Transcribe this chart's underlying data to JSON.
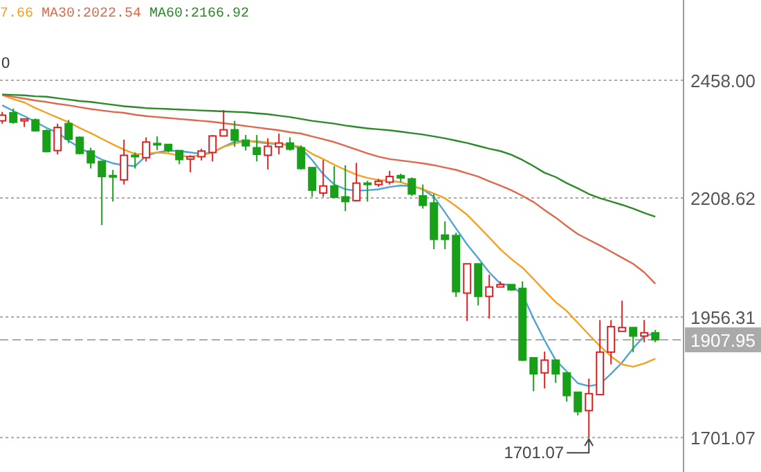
{
  "chart_data": {
    "type": "candlestick",
    "categories": [
      null,
      null,
      null,
      null,
      null,
      null,
      null,
      null,
      null,
      null,
      null,
      null,
      null,
      null,
      null,
      null,
      null,
      null,
      null,
      null,
      null,
      null,
      null,
      null,
      null,
      null,
      null,
      null,
      null,
      null,
      null,
      null,
      null,
      null,
      null,
      null,
      null,
      null,
      null,
      null,
      null,
      null,
      null,
      null,
      null,
      null,
      null,
      null,
      null,
      null,
      null,
      null,
      null,
      null,
      null,
      null,
      null,
      null,
      null,
      null
    ],
    "ohlc": [
      [
        2372,
        2391,
        2366,
        2384
      ],
      [
        2389,
        2398,
        2366,
        2369
      ],
      [
        2372,
        2376,
        2359,
        2376
      ],
      [
        2374,
        2377,
        2349,
        2351
      ],
      [
        2351,
        2354,
        2305,
        2307
      ],
      [
        2309,
        2366,
        2301,
        2358
      ],
      [
        2366,
        2374,
        2325,
        2333
      ],
      [
        2337,
        2339,
        2301,
        2303
      ],
      [
        2308,
        2315,
        2271,
        2283
      ],
      [
        2286,
        2286,
        2151,
        2254
      ],
      [
        2256,
        2268,
        2201,
        2254
      ],
      [
        2247,
        2332,
        2237,
        2299
      ],
      [
        2299,
        2305,
        2271,
        2296
      ],
      [
        2294,
        2337,
        2286,
        2327
      ],
      [
        2324,
        2339,
        2310,
        2322
      ],
      [
        2322,
        2322,
        2305,
        2309
      ],
      [
        2309,
        2309,
        2280,
        2290
      ],
      [
        2291,
        2299,
        2263,
        2296
      ],
      [
        2296,
        2313,
        2288,
        2308
      ],
      [
        2305,
        2342,
        2286,
        2340
      ],
      [
        2340,
        2395,
        2340,
        2353
      ],
      [
        2353,
        2372,
        2317,
        2331
      ],
      [
        2331,
        2342,
        2309,
        2319
      ],
      [
        2315,
        2342,
        2286,
        2301
      ],
      [
        2299,
        2335,
        2269,
        2318
      ],
      [
        2317,
        2345,
        2301,
        2325
      ],
      [
        2325,
        2337,
        2309,
        2312
      ],
      [
        2315,
        2320,
        2269,
        2271
      ],
      [
        2273,
        2273,
        2211,
        2225
      ],
      [
        2219,
        2289,
        2211,
        2234
      ],
      [
        2234,
        2276,
        2208,
        2210
      ],
      [
        2211,
        2278,
        2181,
        2201
      ],
      [
        2203,
        2283,
        2201,
        2240
      ],
      [
        2240,
        2245,
        2201,
        2238
      ],
      [
        2237,
        2249,
        2232,
        2244
      ],
      [
        2242,
        2266,
        2237,
        2254
      ],
      [
        2256,
        2260,
        2242,
        2251
      ],
      [
        2249,
        2252,
        2213,
        2217
      ],
      [
        2213,
        2237,
        2186,
        2193
      ],
      [
        2198,
        2217,
        2100,
        2121
      ],
      [
        2130,
        2159,
        2100,
        2121
      ],
      [
        2129,
        2135,
        1999,
        2010
      ],
      [
        2007,
        2069,
        1948,
        2069
      ],
      [
        2069,
        2069,
        1981,
        2000
      ],
      [
        2000,
        2046,
        1953,
        2020
      ],
      [
        2020,
        2032,
        2020,
        2025
      ],
      [
        2025,
        2025,
        2012,
        2014
      ],
      [
        2017,
        2032,
        1863,
        1865
      ],
      [
        1870,
        1870,
        1799,
        1836
      ],
      [
        1838,
        1883,
        1805,
        1865
      ],
      [
        1865,
        1865,
        1817,
        1836
      ],
      [
        1838,
        1838,
        1777,
        1790
      ],
      [
        1797,
        1797,
        1748,
        1756
      ],
      [
        1758,
        1826,
        1701.07,
        1794
      ],
      [
        1792,
        1950,
        1792,
        1882
      ],
      [
        1882,
        1950,
        1856,
        1936
      ],
      [
        1926,
        1991,
        1926,
        1934
      ],
      [
        1934,
        1934,
        1882,
        1916
      ],
      [
        1916,
        1950,
        1903,
        1923
      ],
      [
        1923,
        1929,
        1903,
        1907.95
      ]
    ],
    "colors": [
      "#e02020",
      "#18a018",
      "#e02020",
      "#18a018",
      "#18a018",
      "#e02020",
      "#18a018",
      "#18a018",
      "#18a018",
      "#18a018",
      "#18a018",
      "#e02020",
      "#18a018",
      "#e02020",
      "#18a018",
      "#18a018",
      "#18a018",
      "#e02020",
      "#e02020",
      "#e02020",
      "#e02020",
      "#18a018",
      "#18a018",
      "#18a018",
      "#e02020",
      "#e02020",
      "#18a018",
      "#18a018",
      "#18a018",
      "#e02020",
      "#18a018",
      "#18a018",
      "#e02020",
      "#18a018",
      "#e02020",
      "#e02020",
      "#18a018",
      "#18a018",
      "#18a018",
      "#18a018",
      "#18a018",
      "#18a018",
      "#e02020",
      "#18a018",
      "#e02020",
      "#e02020",
      "#18a018",
      "#18a018",
      "#18a018",
      "#e02020",
      "#18a018",
      "#18a018",
      "#18a018",
      "#e02020",
      "#e02020",
      "#e02020",
      "#e02020",
      "#18a018",
      "#e02020",
      "#18a018"
    ],
    "series": [
      {
        "type": "line",
        "color": "#4ba3d8",
        "values": [
          2405,
          2393,
          2382,
          2370,
          2357,
          2347,
          2330,
          2315,
          2302,
          2290,
          2282,
          2278,
          2276,
          2298,
          2305,
          2309,
          2308,
          2305,
          2302,
          2305,
          2317,
          2328,
          2330,
          2327,
          2324,
          2323,
          2320,
          2314,
          2289,
          2259,
          2237,
          2227,
          2224,
          2225,
          2227,
          2232,
          2235,
          2234,
          2227,
          2211,
          2178,
          2144,
          2110,
          2081,
          2051,
          2027,
          2023,
          2004,
          1953,
          1907,
          1865,
          1841,
          1816,
          1810,
          1814,
          1836,
          1860,
          1890,
          1916,
          1922
        ]
      },
      {
        "type": "line",
        "name": "7.66",
        "color": "#f5a020",
        "values": [
          2427,
          2418,
          2411,
          2399,
          2389,
          2379,
          2369,
          2357,
          2346,
          2334,
          2322,
          2311,
          2302,
          2302,
          2305,
          2303,
          2298,
          2296,
          2299,
          2305,
          2317,
          2324,
          2329,
          2329,
          2326,
          2323,
          2321,
          2317,
          2302,
          2291,
          2279,
          2268,
          2258,
          2251,
          2247,
          2245,
          2242,
          2235,
          2227,
          2218,
          2208,
          2191,
          2173,
          2149,
          2125,
          2100,
          2079,
          2061,
          2037,
          2012,
          1988,
          1969,
          1944,
          1919,
          1895,
          1873,
          1856,
          1851,
          1858,
          1868
        ]
      },
      {
        "type": "line",
        "name": "MA30:2022.54",
        "color": "#e0684a",
        "values": [
          2427,
          2423,
          2419,
          2415,
          2412,
          2408,
          2405,
          2401,
          2397,
          2394,
          2391,
          2389,
          2385,
          2382,
          2380,
          2378,
          2376,
          2374,
          2372,
          2370,
          2367,
          2364,
          2361,
          2358,
          2355,
          2352,
          2348,
          2345,
          2339,
          2333,
          2327,
          2319,
          2311,
          2303,
          2296,
          2291,
          2288,
          2285,
          2282,
          2278,
          2273,
          2268,
          2261,
          2254,
          2244,
          2235,
          2225,
          2213,
          2200,
          2183,
          2167,
          2149,
          2132,
          2120,
          2108,
          2095,
          2082,
          2069,
          2051,
          2027
        ]
      },
      {
        "type": "line",
        "name": "MA60:2166.92",
        "color": "#2a8a2a",
        "values": [
          2428,
          2427,
          2426,
          2424,
          2423,
          2420,
          2417,
          2414,
          2412,
          2409,
          2406,
          2403,
          2401,
          2399,
          2398,
          2397,
          2396,
          2395,
          2394,
          2393,
          2392,
          2391,
          2390,
          2388,
          2386,
          2383,
          2380,
          2376,
          2372,
          2369,
          2366,
          2362,
          2359,
          2356,
          2354,
          2352,
          2349,
          2346,
          2343,
          2339,
          2335,
          2330,
          2325,
          2319,
          2313,
          2308,
          2300,
          2289,
          2276,
          2262,
          2253,
          2240,
          2229,
          2217,
          2208,
          2201,
          2194,
          2186,
          2177,
          2169
        ]
      }
    ],
    "ylim": [
      1628,
      2628
    ],
    "yticks": [
      {
        "value": 2458,
        "label": "2458.00"
      },
      2208.62,
      1956.31,
      1701.07
    ],
    "tick_labels": "y",
    "grid": "y",
    "legend": "top",
    "ref_lines": [
      {
        "axis": "y",
        "value": 1907.95,
        "label": "1907.95",
        "color": "#aaaaaa",
        "line_style": "dashed"
      }
    ],
    "annotations": [
      "1701.07",
      "0"
    ]
  }
}
